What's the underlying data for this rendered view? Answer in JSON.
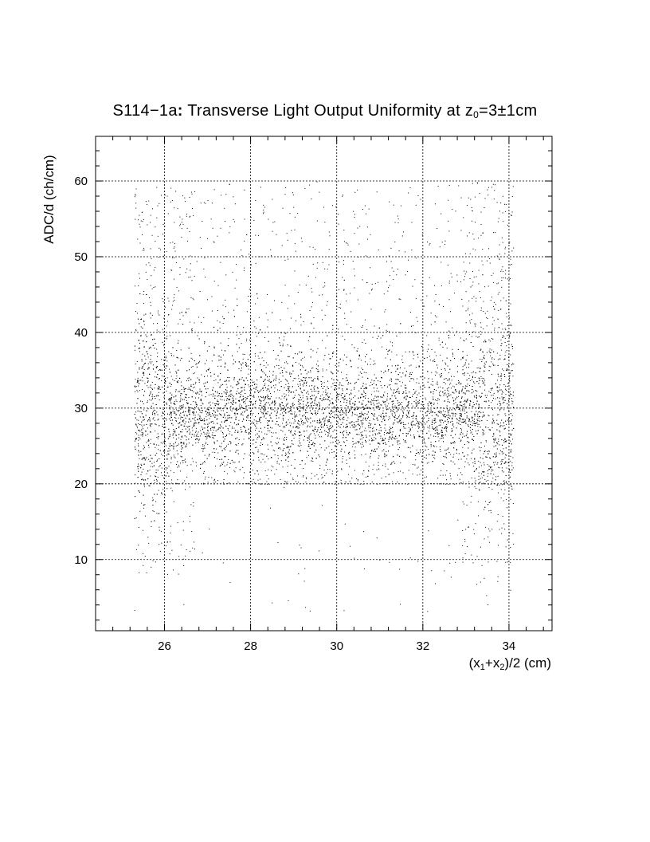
{
  "chart_data": {
    "type": "scatter",
    "title": {
      "prefix": "S114−1a",
      "bold_colon": ":",
      "main": " Transverse Light Output Uniformity at z",
      "subscript": "0",
      "suffix": "=3±1cm"
    },
    "xlabel": {
      "a": "(x",
      "sub1": "1",
      "b": "+x",
      "sub2": "2",
      "c": ")/2 (cm)"
    },
    "ylabel": "ADC/d (ch/cm)",
    "xlim": [
      24.4,
      35.0
    ],
    "ylim": [
      0.6,
      65.9
    ],
    "x_ticks": [
      26,
      28,
      30,
      32,
      34
    ],
    "y_ticks": [
      10,
      20,
      30,
      40,
      50,
      60
    ],
    "x_tick_labels": [
      "26",
      "28",
      "30",
      "32",
      "34"
    ],
    "y_tick_labels": [
      "10",
      "20",
      "30",
      "40",
      "50",
      "60"
    ],
    "grid": true,
    "marker_color": "#000000",
    "distribution": {
      "x_range": [
        25.3,
        34.1
      ],
      "core_y_mean": 29,
      "core_y_spread": 3,
      "sparse_y_range": [
        3,
        60
      ]
    }
  }
}
